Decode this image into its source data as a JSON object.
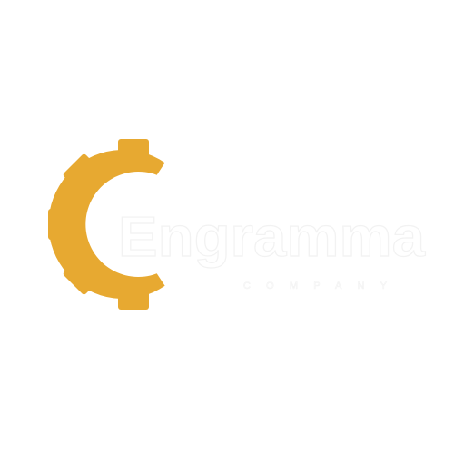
{
  "logo": {
    "icon": "gear-icon",
    "gear_color": "#E7A931",
    "text_color": "#FFFFFF",
    "wordmark": "Engramma",
    "tagline": "COMPANY"
  }
}
